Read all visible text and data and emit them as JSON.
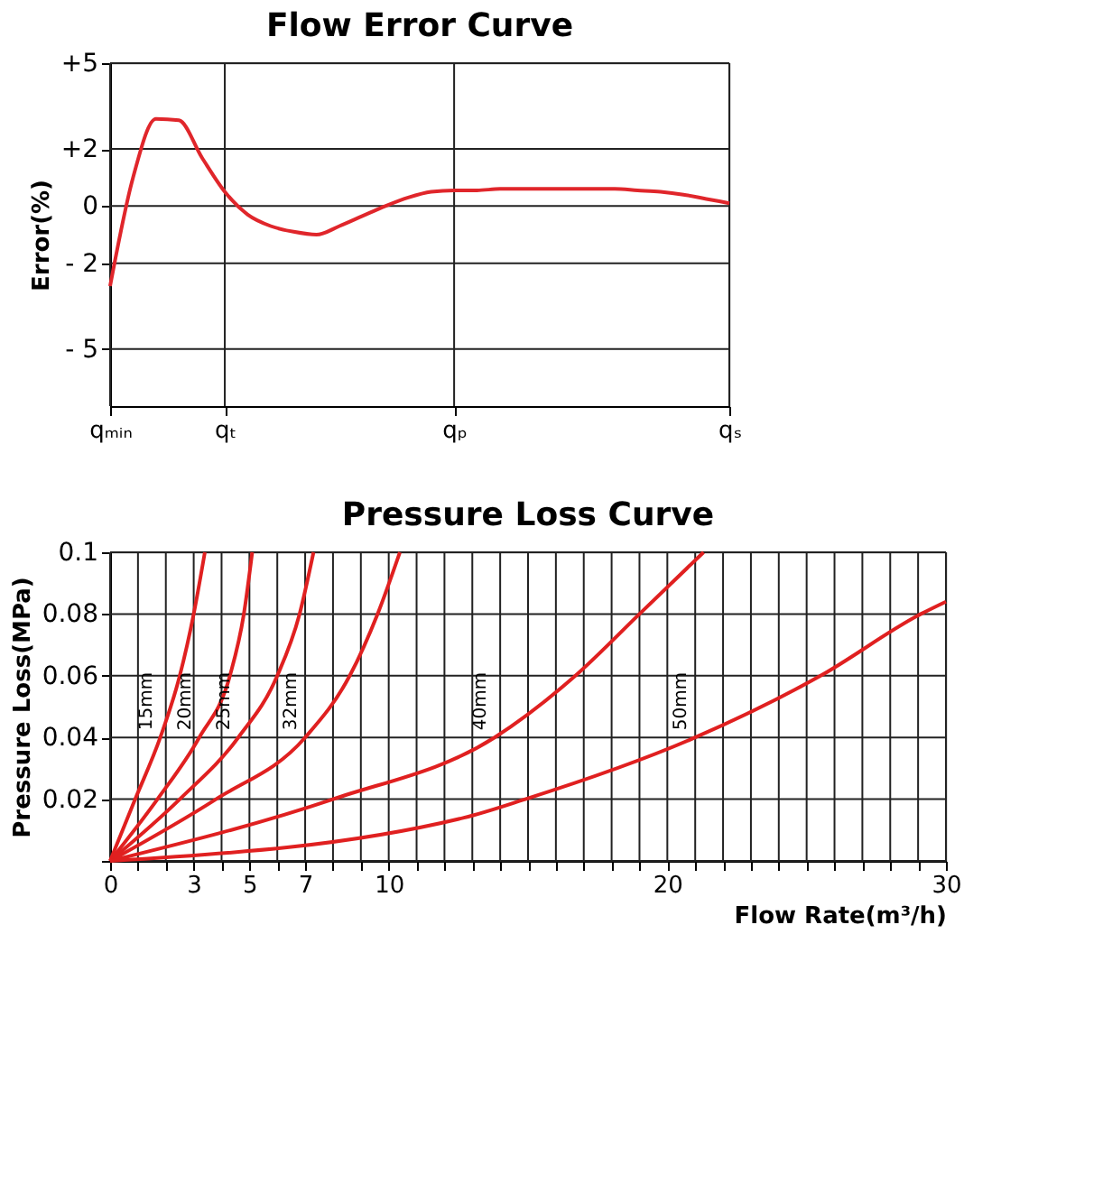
{
  "chart_data": [
    {
      "type": "line",
      "title": "Flow Error Curve",
      "ylabel": "Error(%)",
      "grid": true,
      "categories": [
        "qₘᵢₙ",
        null,
        null,
        null,
        null,
        "qₜ",
        null,
        null,
        null,
        null,
        null,
        null,
        null,
        null,
        null,
        "qₚ",
        null,
        null,
        null,
        null,
        null,
        null,
        null,
        null,
        null,
        null,
        null,
        "qₛ"
      ],
      "ylim": [
        -7,
        5
      ],
      "yticks": [
        {
          "value": 5,
          "label": "+5"
        },
        {
          "value": 2,
          "label": "+2"
        },
        0,
        {
          "value": -2,
          "label": "- 2"
        },
        {
          "value": -5,
          "label": "- 5"
        }
      ],
      "series": [
        {
          "color": "#e0262b",
          "values": [
            -2.8,
            1.0,
            3.05,
            3.0,
            1.7,
            0.5,
            -0.3,
            -0.7,
            -0.9,
            -1.0,
            -0.7,
            -0.35,
            0.0,
            0.3,
            0.5,
            0.55,
            0.55,
            0.6,
            0.6,
            0.6,
            0.6,
            0.6,
            0.6,
            0.55,
            0.5,
            0.4,
            0.25,
            0.1
          ]
        }
      ]
    },
    {
      "type": "line",
      "title": "Pressure Loss Curve",
      "xlabel": "Flow Rate(m³/h)",
      "ylabel": "Pressure Loss(MPa)",
      "grid": true,
      "xlim": [
        0,
        30
      ],
      "xticks": [
        0,
        {
          "value": 1,
          "label": null
        },
        {
          "value": 2,
          "label": null
        },
        3,
        {
          "value": 4,
          "label": null
        },
        5,
        {
          "value": 6,
          "label": null
        },
        7,
        {
          "value": 8,
          "label": null
        },
        {
          "value": 9,
          "label": null
        },
        10,
        {
          "value": 11,
          "label": null
        },
        {
          "value": 12,
          "label": null
        },
        {
          "value": 13,
          "label": null
        },
        {
          "value": 14,
          "label": null
        },
        {
          "value": 15,
          "label": null
        },
        {
          "value": 16,
          "label": null
        },
        {
          "value": 17,
          "label": null
        },
        {
          "value": 18,
          "label": null
        },
        {
          "value": 19,
          "label": null
        },
        20,
        {
          "value": 21,
          "label": null
        },
        {
          "value": 22,
          "label": null
        },
        {
          "value": 23,
          "label": null
        },
        {
          "value": 24,
          "label": null
        },
        {
          "value": 25,
          "label": null
        },
        {
          "value": 26,
          "label": null
        },
        {
          "value": 27,
          "label": null
        },
        {
          "value": 28,
          "label": null
        },
        {
          "value": 29,
          "label": null
        },
        30
      ],
      "ylim": [
        0,
        0.1
      ],
      "yticks": [
        {
          "value": 0,
          "label": null
        },
        0.02,
        0.04,
        0.06,
        0.08,
        0.1
      ],
      "series": [
        {
          "name": "15mm",
          "color": "#e02020",
          "x": [
            0,
            0.9,
            1.8,
            2.5,
            3.0,
            3.4
          ],
          "values": [
            0,
            0.02,
            0.04,
            0.06,
            0.08,
            0.1
          ]
        },
        {
          "name": "20mm",
          "color": "#e02020",
          "x": [
            0,
            1.7,
            3.2,
            4.3,
            4.8,
            5.1
          ],
          "values": [
            0,
            0.02,
            0.04,
            0.06,
            0.08,
            0.1
          ]
        },
        {
          "name": "25mm",
          "color": "#e02020",
          "x": [
            0,
            2.5,
            4.6,
            6.0,
            6.8,
            7.3
          ],
          "values": [
            0,
            0.02,
            0.04,
            0.06,
            0.08,
            0.1
          ]
        },
        {
          "name": "32mm",
          "color": "#e02020",
          "x": [
            0,
            3.8,
            7.0,
            8.6,
            9.6,
            10.4
          ],
          "values": [
            0,
            0.02,
            0.04,
            0.06,
            0.08,
            0.1
          ]
        },
        {
          "name": "40mm",
          "color": "#e02020",
          "x": [
            0,
            8.0,
            13.8,
            16.7,
            19.0,
            21.3
          ],
          "values": [
            0,
            0.02,
            0.04,
            0.06,
            0.08,
            0.1
          ]
        },
        {
          "name": "50mm",
          "color": "#e02020",
          "x": [
            0,
            12.7,
            14.9,
            21.0,
            25.5,
            29.1,
            30
          ],
          "values": [
            0,
            0.014,
            0.02,
            0.04,
            0.06,
            0.08,
            0.084
          ]
        }
      ]
    }
  ]
}
